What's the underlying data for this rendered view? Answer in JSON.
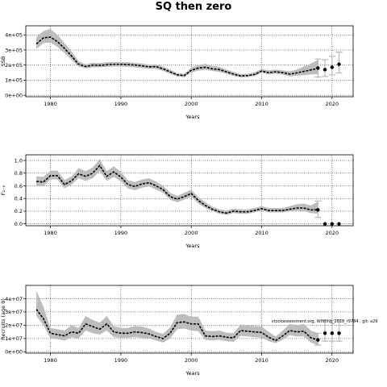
{
  "title": "SQ then zero",
  "colors": {
    "band": "#bdbdbd",
    "line": "#000000",
    "errorbar": "#b8b8b8",
    "grid": "#000000"
  },
  "chart_data": [
    {
      "type": "line",
      "ylabel": "SSB",
      "xlabel": "Years",
      "xlim": [
        1976.5,
        2023
      ],
      "ylim": [
        -10000,
        460000
      ],
      "xticks": [
        1980,
        1990,
        2000,
        2010,
        2020
      ],
      "yticks": [
        0,
        100000,
        200000,
        300000,
        400000
      ],
      "ytick_labels": [
        "0e+00",
        "1e+05",
        "2e+05",
        "3e+05",
        "4e+05"
      ],
      "grid": true,
      "x": [
        1978,
        1979,
        1980,
        1981,
        1982,
        1983,
        1984,
        1985,
        1986,
        1987,
        1988,
        1989,
        1990,
        1991,
        1992,
        1993,
        1994,
        1995,
        1996,
        1997,
        1998,
        1999,
        2000,
        2001,
        2002,
        2003,
        2004,
        2005,
        2006,
        2007,
        2008,
        2009,
        2010,
        2011,
        2012,
        2013,
        2014,
        2015,
        2016,
        2017,
        2018
      ],
      "y": [
        340000,
        380000,
        385000,
        355000,
        310000,
        260000,
        205000,
        190000,
        200000,
        198000,
        202000,
        205000,
        205000,
        203000,
        200000,
        195000,
        188000,
        190000,
        175000,
        155000,
        135000,
        130000,
        165000,
        180000,
        185000,
        175000,
        170000,
        155000,
        140000,
        128000,
        130000,
        138000,
        160000,
        150000,
        155000,
        150000,
        140000,
        148000,
        158000,
        168000,
        178000
      ],
      "lower": [
        305000,
        345000,
        350000,
        320000,
        280000,
        235000,
        190000,
        178000,
        185000,
        185000,
        188000,
        190000,
        190000,
        188000,
        185000,
        180000,
        175000,
        175000,
        160000,
        142000,
        125000,
        120000,
        150000,
        163000,
        168000,
        160000,
        155000,
        142000,
        128000,
        118000,
        120000,
        127000,
        148000,
        138000,
        142000,
        137000,
        125000,
        130000,
        132000,
        138000,
        140000
      ],
      "upper": [
        385000,
        425000,
        440000,
        400000,
        345000,
        290000,
        225000,
        205000,
        215000,
        213000,
        218000,
        220000,
        220000,
        218000,
        215000,
        210000,
        203000,
        205000,
        190000,
        170000,
        147000,
        142000,
        182000,
        200000,
        208000,
        195000,
        188000,
        170000,
        155000,
        140000,
        142000,
        152000,
        175000,
        165000,
        170000,
        165000,
        158000,
        170000,
        190000,
        210000,
        235000
      ],
      "projection": [
        {
          "x": 2018,
          "y": 180000,
          "lo": 120000,
          "hi": 240000
        },
        {
          "x": 2019,
          "y": 170000,
          "lo": 125000,
          "hi": 235000
        },
        {
          "x": 2020,
          "y": 185000,
          "lo": 135000,
          "hi": 258000
        },
        {
          "x": 2021,
          "y": 205000,
          "lo": 148000,
          "hi": 285000
        }
      ]
    },
    {
      "type": "line",
      "ylabel": "F₂₋₆",
      "xlabel": "Years",
      "xlim": [
        1976.5,
        2023
      ],
      "ylim": [
        -0.03,
        1.09
      ],
      "xticks": [
        1980,
        1990,
        2000,
        2010,
        2020
      ],
      "yticks": [
        0,
        0.2,
        0.4,
        0.6,
        0.8,
        1.0
      ],
      "ytick_labels": [
        "0.0",
        "0.2",
        "0.4",
        "0.6",
        "0.8",
        "1.0"
      ],
      "grid": true,
      "x": [
        1978,
        1979,
        1980,
        1981,
        1982,
        1983,
        1984,
        1985,
        1986,
        1987,
        1988,
        1989,
        1990,
        1991,
        1992,
        1993,
        1994,
        1995,
        1996,
        1997,
        1998,
        1999,
        2000,
        2001,
        2002,
        2003,
        2004,
        2005,
        2006,
        2007,
        2008,
        2009,
        2010,
        2011,
        2012,
        2013,
        2014,
        2015,
        2016,
        2017,
        2018
      ],
      "y": [
        0.67,
        0.66,
        0.76,
        0.76,
        0.62,
        0.68,
        0.79,
        0.75,
        0.8,
        0.92,
        0.75,
        0.82,
        0.74,
        0.62,
        0.59,
        0.63,
        0.65,
        0.6,
        0.54,
        0.43,
        0.39,
        0.43,
        0.48,
        0.37,
        0.29,
        0.23,
        0.19,
        0.17,
        0.2,
        0.19,
        0.19,
        0.21,
        0.24,
        0.21,
        0.21,
        0.21,
        0.23,
        0.25,
        0.25,
        0.22,
        0.22
      ],
      "lower": [
        0.6,
        0.59,
        0.7,
        0.7,
        0.56,
        0.62,
        0.72,
        0.68,
        0.72,
        0.83,
        0.68,
        0.74,
        0.67,
        0.56,
        0.53,
        0.57,
        0.59,
        0.54,
        0.49,
        0.38,
        0.34,
        0.38,
        0.43,
        0.32,
        0.25,
        0.2,
        0.16,
        0.14,
        0.17,
        0.16,
        0.16,
        0.18,
        0.21,
        0.18,
        0.18,
        0.18,
        0.2,
        0.21,
        0.2,
        0.17,
        0.16
      ],
      "upper": [
        0.75,
        0.74,
        0.84,
        0.84,
        0.69,
        0.75,
        0.88,
        0.83,
        0.89,
        1.02,
        0.83,
        0.91,
        0.82,
        0.69,
        0.66,
        0.7,
        0.72,
        0.67,
        0.6,
        0.49,
        0.44,
        0.49,
        0.54,
        0.42,
        0.34,
        0.27,
        0.23,
        0.21,
        0.24,
        0.23,
        0.23,
        0.25,
        0.28,
        0.25,
        0.25,
        0.25,
        0.28,
        0.31,
        0.32,
        0.29,
        0.35
      ],
      "projection": [
        {
          "x": 2018,
          "y": 0.22,
          "lo": 0.1,
          "hi": 0.36
        },
        {
          "x": 2019,
          "y": 0.0
        },
        {
          "x": 2020,
          "y": 0.0
        },
        {
          "x": 2021,
          "y": 0.0
        }
      ]
    },
    {
      "type": "line",
      "ylabel": "Recruits (age 0)",
      "xlabel": "Years",
      "xlim": [
        1976.5,
        2023
      ],
      "ylim": [
        -1000000,
        50000000
      ],
      "xticks": [
        1980,
        1990,
        2000,
        2010,
        2020
      ],
      "yticks": [
        0,
        10000000,
        20000000,
        30000000,
        40000000
      ],
      "ytick_labels": [
        "0e+00",
        "1e+07",
        "2e+07",
        "3e+07",
        "4e+07"
      ],
      "grid": true,
      "annotation": "stockassessment.org, Whiting_2018_r9784 , git: a29",
      "x": [
        1978,
        1979,
        1980,
        1981,
        1982,
        1983,
        1984,
        1985,
        1986,
        1987,
        1988,
        1989,
        1990,
        1991,
        1992,
        1993,
        1994,
        1995,
        1996,
        1997,
        1998,
        1999,
        2000,
        2001,
        2002,
        2003,
        2004,
        2005,
        2006,
        2007,
        2008,
        2009,
        2010,
        2011,
        2012,
        2013,
        2014,
        2015,
        2016,
        2017,
        2018
      ],
      "y": [
        32000000,
        25000000,
        14000000,
        13000000,
        12000000,
        15000000,
        14000000,
        21000000,
        19000000,
        17000000,
        21000000,
        15000000,
        14000000,
        14000000,
        15000000,
        14500000,
        13500000,
        11500000,
        10000000,
        14000000,
        22000000,
        22500000,
        21000000,
        21000000,
        12000000,
        11500000,
        12000000,
        11000000,
        10500000,
        16000000,
        15500000,
        15000000,
        14500000,
        11000000,
        8500000,
        12000000,
        16000000,
        15000000,
        15500000,
        10500000,
        9000000
      ],
      "lower": [
        27000000,
        20000000,
        10000000,
        9500000,
        8500000,
        11000000,
        10000000,
        16000000,
        14000000,
        13000000,
        16000000,
        11000000,
        10500000,
        10500000,
        11000000,
        10500000,
        10000000,
        8500000,
        7000000,
        10000000,
        17000000,
        17500000,
        16000000,
        15500000,
        9000000,
        8500000,
        9000000,
        8000000,
        7500000,
        12000000,
        11500000,
        11000000,
        10500000,
        8000000,
        6500000,
        9000000,
        12500000,
        11500000,
        11500000,
        7000000,
        5000000
      ],
      "upper": [
        46000000,
        34000000,
        18000000,
        17000000,
        16000000,
        20000000,
        18000000,
        27000000,
        24000000,
        22000000,
        27000000,
        19500000,
        18000000,
        18000000,
        19500000,
        19000000,
        17500000,
        15000000,
        13500000,
        18500000,
        28000000,
        28500000,
        26500000,
        26500000,
        16000000,
        15500000,
        16000000,
        14500000,
        14000000,
        20500000,
        20000000,
        19500000,
        19000000,
        15000000,
        11500000,
        16000000,
        21000000,
        20000000,
        21000000,
        16000000,
        14000000
      ],
      "projection": [
        {
          "x": 2018,
          "y": 9000000,
          "lo": 5000000,
          "hi": 14000000
        },
        {
          "x": 2019,
          "y": 14000000,
          "lo": 8000000,
          "hi": 24000000
        },
        {
          "x": 2020,
          "y": 14000000,
          "lo": 8000000,
          "hi": 24000000
        },
        {
          "x": 2021,
          "y": 14000000,
          "lo": 8000000,
          "hi": 24000000
        }
      ]
    }
  ]
}
